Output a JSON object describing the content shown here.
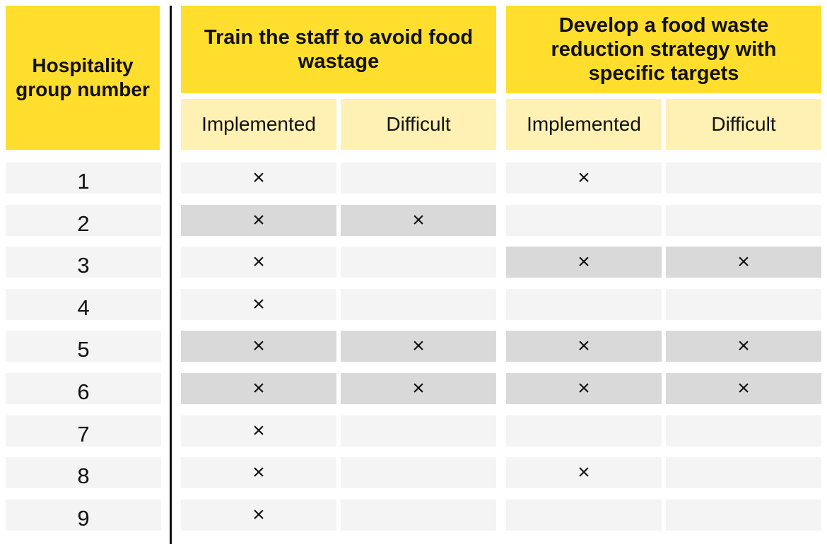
{
  "corner_header": "Hospitality group number",
  "groups": [
    {
      "title": "Train the staff to avoid food wastage",
      "subheaders": [
        "Implemented",
        "Difficult"
      ]
    },
    {
      "title": "Develop a food waste reduction strategy with specific targets",
      "subheaders": [
        "Implemented",
        "Difficult"
      ]
    }
  ],
  "mark_symbol": "×",
  "colors": {
    "header": "#ffde2e",
    "subheader": "#fff1b3",
    "cell": "#f4f4f4",
    "shaded_cell": "#d9d9d9"
  },
  "rows": [
    {
      "number": "1",
      "train_implemented": true,
      "train_difficult": false,
      "strategy_implemented": true,
      "strategy_difficult": false
    },
    {
      "number": "2",
      "train_implemented": true,
      "train_difficult": true,
      "strategy_implemented": false,
      "strategy_difficult": false
    },
    {
      "number": "3",
      "train_implemented": true,
      "train_difficult": false,
      "strategy_implemented": true,
      "strategy_difficult": true
    },
    {
      "number": "4",
      "train_implemented": true,
      "train_difficult": false,
      "strategy_implemented": false,
      "strategy_difficult": false
    },
    {
      "number": "5",
      "train_implemented": true,
      "train_difficult": true,
      "strategy_implemented": true,
      "strategy_difficult": true
    },
    {
      "number": "6",
      "train_implemented": true,
      "train_difficult": true,
      "strategy_implemented": true,
      "strategy_difficult": true
    },
    {
      "number": "7",
      "train_implemented": true,
      "train_difficult": false,
      "strategy_implemented": false,
      "strategy_difficult": false
    },
    {
      "number": "8",
      "train_implemented": true,
      "train_difficult": false,
      "strategy_implemented": true,
      "strategy_difficult": false
    },
    {
      "number": "9",
      "train_implemented": true,
      "train_difficult": false,
      "strategy_implemented": false,
      "strategy_difficult": false
    }
  ]
}
